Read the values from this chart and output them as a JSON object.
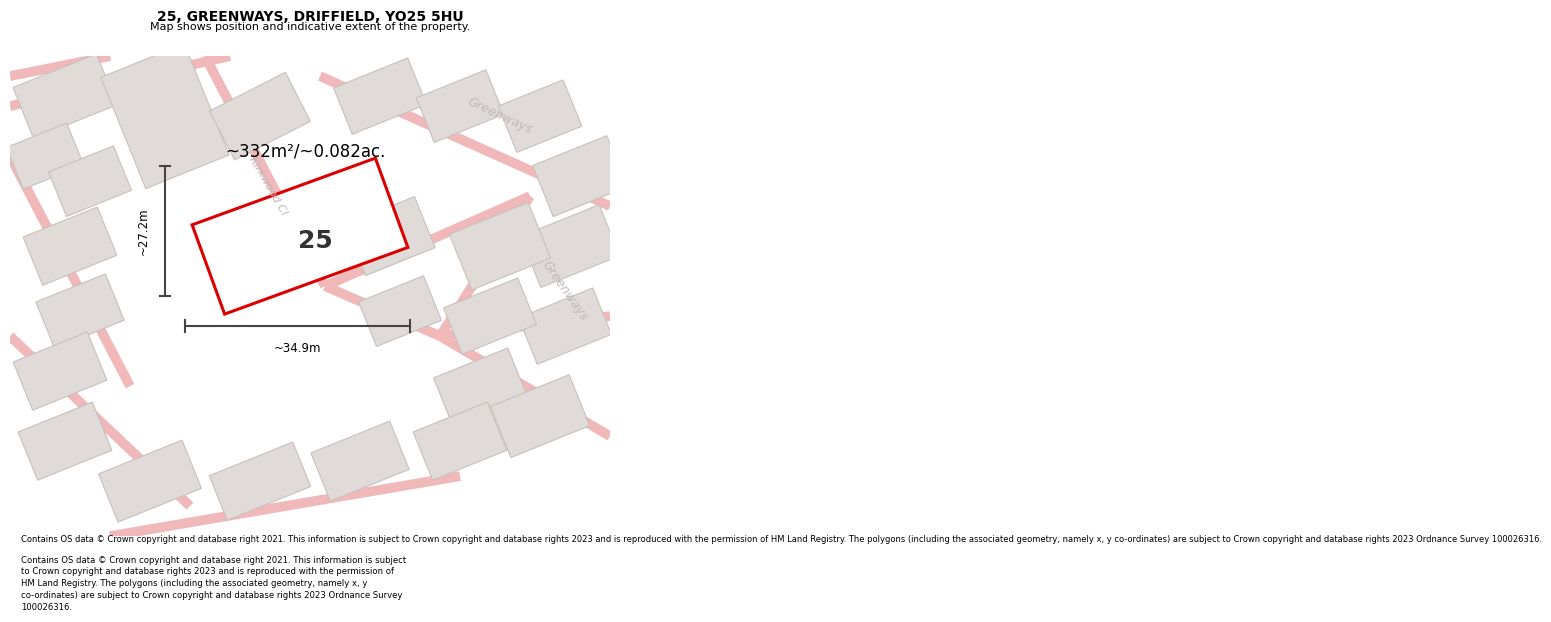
{
  "title": "25, GREENWAYS, DRIFFIELD, YO25 5HU",
  "subtitle": "Map shows position and indicative extent of the property.",
  "footer": "Contains OS data © Crown copyright and database right 2021. This information is subject to Crown copyright and database rights 2023 and is reproduced with the permission of HM Land Registry. The polygons (including the associated geometry, namely x, y co-ordinates) are subject to Crown copyright and database rights 2023 Ordnance Survey 100026316.",
  "area_text": "~332m²/~0.082ac.",
  "label_number": "25",
  "dim_width": "~34.9m",
  "dim_height": "~27.2m",
  "map_bg": "#f7f5f5",
  "road_color": "#f0b8b8",
  "road_fill": "#f7f5f5",
  "building_color": "#e0dbd8",
  "building_edge": "#c8c0bc",
  "plot_outline_color": "#dd0000",
  "street_label_color": "#c0b8b8",
  "dim_line_color": "#444444"
}
